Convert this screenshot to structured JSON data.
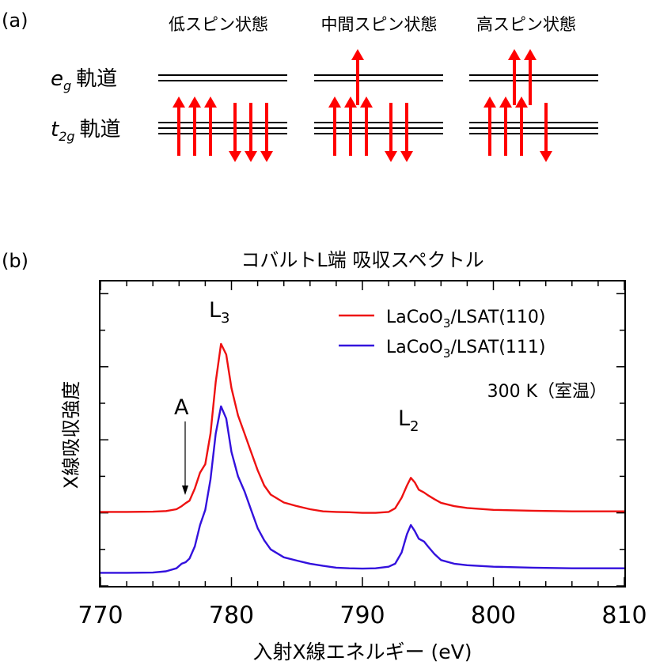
{
  "panel_a": {
    "panel_label": "(a)",
    "states": [
      {
        "name": "低スピン状態",
        "eg_up": 0,
        "eg_down": 0,
        "t2g_up": 3,
        "t2g_down": 3
      },
      {
        "name": "中間スピン状態",
        "eg_up": 1,
        "eg_down": 0,
        "t2g_up": 3,
        "t2g_down": 2
      },
      {
        "name": "高スピン状態",
        "eg_up": 2,
        "eg_down": 0,
        "t2g_up": 3,
        "t2g_down": 1
      }
    ],
    "eg_label": {
      "main": "e",
      "sub": "g",
      "suffix": "軌道"
    },
    "t2g_label": {
      "main": "t",
      "sub": "2g",
      "suffix": "軌道"
    },
    "arrow_color": "#ff0000"
  },
  "panel_b": {
    "panel_label": "(b)",
    "temperature_note": "300 K（室温）",
    "peak_labels": {
      "L3": {
        "main": "L",
        "sub": "3"
      },
      "L2": {
        "main": "L",
        "sub": "2"
      },
      "A": {
        "main": "A"
      }
    }
  },
  "chart_data": {
    "type": "line",
    "title": "コバルトL端 吸収スペクトル",
    "xlabel": "入射X線エネルギー (eV)",
    "ylabel": "X線吸収強度",
    "xlim": [
      770,
      810
    ],
    "ylim": [
      0,
      1
    ],
    "x_ticks": [
      770,
      780,
      790,
      800,
      810
    ],
    "legend_position": "top-right",
    "series": [
      {
        "name": "LaCoO3/LSAT(110)",
        "label_parts": {
          "a": "LaCoO",
          "sub": "3",
          "b": "/LSAT(110)"
        },
        "color": "#ee1111",
        "points": [
          [
            770,
            0.243
          ],
          [
            772,
            0.243
          ],
          [
            774,
            0.244
          ],
          [
            775,
            0.246
          ],
          [
            775.8,
            0.252
          ],
          [
            776.2,
            0.262
          ],
          [
            776.5,
            0.272
          ],
          [
            776.8,
            0.28
          ],
          [
            777.2,
            0.32
          ],
          [
            777.6,
            0.372
          ],
          [
            778,
            0.4
          ],
          [
            778.4,
            0.5
          ],
          [
            778.8,
            0.67
          ],
          [
            779.2,
            0.795
          ],
          [
            779.6,
            0.76
          ],
          [
            780,
            0.65
          ],
          [
            780.5,
            0.56
          ],
          [
            781,
            0.5
          ],
          [
            781.5,
            0.44
          ],
          [
            782,
            0.38
          ],
          [
            782.5,
            0.33
          ],
          [
            783,
            0.3
          ],
          [
            784,
            0.274
          ],
          [
            785,
            0.262
          ],
          [
            786,
            0.252
          ],
          [
            787,
            0.245
          ],
          [
            788,
            0.243
          ],
          [
            789,
            0.242
          ],
          [
            790,
            0.24
          ],
          [
            791,
            0.24
          ],
          [
            792,
            0.243
          ],
          [
            792.5,
            0.255
          ],
          [
            793,
            0.29
          ],
          [
            793.4,
            0.33
          ],
          [
            793.7,
            0.355
          ],
          [
            794,
            0.34
          ],
          [
            794.3,
            0.316
          ],
          [
            794.7,
            0.307
          ],
          [
            795,
            0.298
          ],
          [
            795.5,
            0.285
          ],
          [
            796,
            0.273
          ],
          [
            797,
            0.262
          ],
          [
            798,
            0.256
          ],
          [
            800,
            0.25
          ],
          [
            803,
            0.247
          ],
          [
            806,
            0.245
          ],
          [
            810,
            0.245
          ]
        ]
      },
      {
        "name": "LaCoO3/LSAT(111)",
        "label_parts": {
          "a": "LaCoO",
          "sub": "3",
          "b": "/LSAT(111)"
        },
        "color": "#3311dd",
        "points": [
          [
            770,
            0.043
          ],
          [
            772,
            0.043
          ],
          [
            774,
            0.044
          ],
          [
            775,
            0.048
          ],
          [
            775.8,
            0.058
          ],
          [
            776.2,
            0.073
          ],
          [
            776.5,
            0.078
          ],
          [
            776.8,
            0.09
          ],
          [
            777.2,
            0.13
          ],
          [
            777.6,
            0.2
          ],
          [
            778,
            0.25
          ],
          [
            778.4,
            0.35
          ],
          [
            778.8,
            0.5
          ],
          [
            779.2,
            0.59
          ],
          [
            779.6,
            0.55
          ],
          [
            780,
            0.44
          ],
          [
            780.5,
            0.36
          ],
          [
            781,
            0.31
          ],
          [
            781.5,
            0.25
          ],
          [
            782,
            0.19
          ],
          [
            782.5,
            0.15
          ],
          [
            783,
            0.12
          ],
          [
            784,
            0.094
          ],
          [
            785,
            0.083
          ],
          [
            786,
            0.073
          ],
          [
            787,
            0.066
          ],
          [
            788,
            0.06
          ],
          [
            789,
            0.058
          ],
          [
            790,
            0.057
          ],
          [
            791,
            0.058
          ],
          [
            792,
            0.063
          ],
          [
            792.5,
            0.073
          ],
          [
            793,
            0.11
          ],
          [
            793.4,
            0.17
          ],
          [
            793.7,
            0.2
          ],
          [
            794,
            0.18
          ],
          [
            794.3,
            0.155
          ],
          [
            794.7,
            0.146
          ],
          [
            795,
            0.13
          ],
          [
            795.5,
            0.105
          ],
          [
            796,
            0.085
          ],
          [
            797,
            0.073
          ],
          [
            798,
            0.068
          ],
          [
            800,
            0.063
          ],
          [
            803,
            0.06
          ],
          [
            806,
            0.058
          ],
          [
            810,
            0.058
          ]
        ]
      }
    ]
  }
}
